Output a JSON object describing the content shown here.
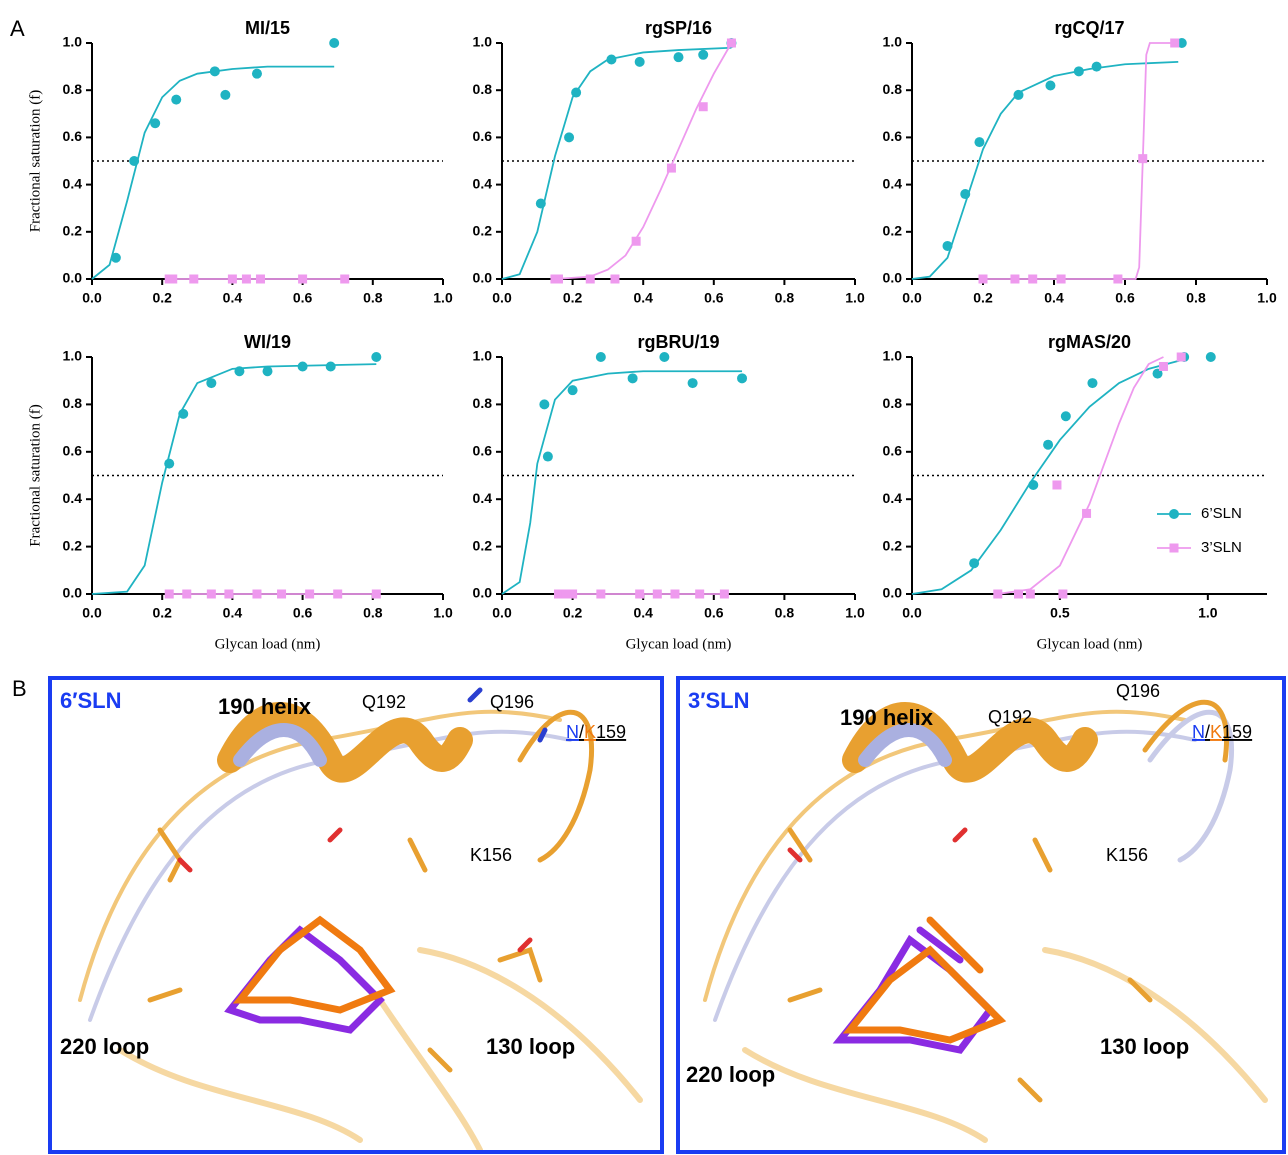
{
  "panel_a_label": "A",
  "chart_data": [
    {
      "type": "scatter",
      "title": "MI/15",
      "ylabel": "Fractional saturation (f)",
      "xlim": [
        0,
        1
      ],
      "ylim": [
        0,
        1
      ],
      "xticks": [
        {
          "value": 0,
          "label": "0.0"
        },
        {
          "value": 0.2,
          "label": "0.2"
        },
        {
          "value": 0.4,
          "label": "0.4"
        },
        {
          "value": 0.6,
          "label": "0.6"
        },
        {
          "value": 0.8,
          "label": "0.8"
        },
        {
          "value": 1,
          "label": "1.0"
        }
      ],
      "yticks": [
        {
          "value": 0,
          "label": "0.0"
        },
        {
          "value": 0.2,
          "label": "0.2"
        },
        {
          "value": 0.4,
          "label": "0.4"
        },
        {
          "value": 0.6,
          "label": "0.6"
        },
        {
          "value": 0.8,
          "label": "0.8"
        },
        {
          "value": 1,
          "label": "1.0"
        }
      ],
      "hline": 0.5,
      "series": [
        {
          "color": "#1fb3c2",
          "marker": "circle",
          "x": [
            0.068,
            0.12,
            0.18,
            0.24,
            0.35,
            0.38,
            0.47,
            0.69
          ],
          "values": [
            0.09,
            0.5,
            0.66,
            0.76,
            0.88,
            0.78,
            0.87,
            1.0
          ],
          "fit": {
            "x": [
              0,
              0.05,
              0.1,
              0.15,
              0.2,
              0.25,
              0.3,
              0.4,
              0.5,
              0.6,
              0.69
            ],
            "values": [
              0,
              0.06,
              0.33,
              0.62,
              0.77,
              0.84,
              0.87,
              0.89,
              0.9,
              0.9,
              0.9
            ]
          }
        },
        {
          "color": "#ee99ee",
          "marker": "square",
          "x": [
            0.22,
            0.23,
            0.29,
            0.4,
            0.44,
            0.48,
            0.6,
            0.72
          ],
          "values": [
            0,
            0,
            0,
            0,
            0,
            0,
            0,
            0
          ],
          "fit": {
            "x": [
              0.22,
              0.72
            ],
            "values": [
              0,
              0
            ]
          }
        }
      ]
    },
    {
      "type": "scatter",
      "title": "rgSP/16",
      "xlim": [
        0,
        1
      ],
      "ylim": [
        0,
        1
      ],
      "xticks": [
        {
          "value": 0,
          "label": "0.0"
        },
        {
          "value": 0.2,
          "label": "0.2"
        },
        {
          "value": 0.4,
          "label": "0.4"
        },
        {
          "value": 0.6,
          "label": "0.6"
        },
        {
          "value": 0.8,
          "label": "0.8"
        },
        {
          "value": 1,
          "label": "1.0"
        }
      ],
      "yticks": [
        {
          "value": 0,
          "label": "0.0"
        },
        {
          "value": 0.2,
          "label": "0.2"
        },
        {
          "value": 0.4,
          "label": "0.4"
        },
        {
          "value": 0.6,
          "label": "0.6"
        },
        {
          "value": 0.8,
          "label": "0.8"
        },
        {
          "value": 1,
          "label": "1.0"
        }
      ],
      "hline": 0.5,
      "series": [
        {
          "color": "#1fb3c2",
          "marker": "circle",
          "x": [
            0.11,
            0.19,
            0.21,
            0.31,
            0.39,
            0.5,
            0.57,
            0.65
          ],
          "values": [
            0.32,
            0.6,
            0.79,
            0.93,
            0.92,
            0.94,
            0.95,
            1.0
          ],
          "fit": {
            "x": [
              0,
              0.05,
              0.1,
              0.15,
              0.2,
              0.25,
              0.3,
              0.4,
              0.5,
              0.65
            ],
            "values": [
              0,
              0.02,
              0.2,
              0.52,
              0.77,
              0.88,
              0.93,
              0.96,
              0.97,
              0.98
            ]
          }
        },
        {
          "color": "#ee99ee",
          "marker": "square",
          "x": [
            0.15,
            0.16,
            0.25,
            0.32,
            0.38,
            0.48,
            0.57,
            0.65
          ],
          "values": [
            0,
            0,
            0,
            0,
            0.16,
            0.47,
            0.73,
            1.0
          ],
          "fit": {
            "x": [
              0.15,
              0.25,
              0.3,
              0.35,
              0.4,
              0.45,
              0.5,
              0.55,
              0.6,
              0.65
            ],
            "values": [
              0,
              0.01,
              0.04,
              0.1,
              0.22,
              0.38,
              0.55,
              0.72,
              0.87,
              1.0
            ]
          }
        }
      ]
    },
    {
      "type": "scatter",
      "title": "rgCQ/17",
      "xlim": [
        0,
        1
      ],
      "ylim": [
        0,
        1
      ],
      "xticks": [
        {
          "value": 0,
          "label": "0.0"
        },
        {
          "value": 0.2,
          "label": "0.2"
        },
        {
          "value": 0.4,
          "label": "0.4"
        },
        {
          "value": 0.6,
          "label": "0.6"
        },
        {
          "value": 0.8,
          "label": "0.8"
        },
        {
          "value": 1,
          "label": "1.0"
        }
      ],
      "yticks": [
        {
          "value": 0,
          "label": "0.0"
        },
        {
          "value": 0.2,
          "label": "0.2"
        },
        {
          "value": 0.4,
          "label": "0.4"
        },
        {
          "value": 0.6,
          "label": "0.6"
        },
        {
          "value": 0.8,
          "label": "0.8"
        },
        {
          "value": 1,
          "label": "1.0"
        }
      ],
      "hline": 0.5,
      "series": [
        {
          "color": "#1fb3c2",
          "marker": "circle",
          "x": [
            0.1,
            0.15,
            0.19,
            0.3,
            0.39,
            0.47,
            0.52,
            0.76
          ],
          "values": [
            0.14,
            0.36,
            0.58,
            0.78,
            0.82,
            0.88,
            0.9,
            1.0
          ],
          "fit": {
            "x": [
              0,
              0.05,
              0.1,
              0.15,
              0.2,
              0.25,
              0.3,
              0.4,
              0.5,
              0.6,
              0.75
            ],
            "values": [
              0,
              0.01,
              0.09,
              0.32,
              0.55,
              0.7,
              0.79,
              0.86,
              0.89,
              0.91,
              0.92
            ]
          }
        },
        {
          "color": "#ee99ee",
          "marker": "square",
          "x": [
            0.2,
            0.29,
            0.34,
            0.42,
            0.58,
            0.65,
            0.74
          ],
          "values": [
            0,
            0,
            0,
            0,
            0,
            0.51,
            1.0
          ],
          "fit": {
            "x": [
              0.2,
              0.63,
              0.64,
              0.65,
              0.66,
              0.67,
              0.75
            ],
            "values": [
              0,
              0,
              0.05,
              0.5,
              0.95,
              1.0,
              1.0
            ]
          }
        }
      ]
    },
    {
      "type": "scatter",
      "title": "WI/19",
      "ylabel": "Fractional saturation (f)",
      "xlabel": "Glycan load (nm)",
      "xlim": [
        0,
        1
      ],
      "ylim": [
        0,
        1
      ],
      "xticks": [
        {
          "value": 0,
          "label": "0.0"
        },
        {
          "value": 0.2,
          "label": "0.2"
        },
        {
          "value": 0.4,
          "label": "0.4"
        },
        {
          "value": 0.6,
          "label": "0.6"
        },
        {
          "value": 0.8,
          "label": "0.8"
        },
        {
          "value": 1,
          "label": "1.0"
        }
      ],
      "yticks": [
        {
          "value": 0,
          "label": "0.0"
        },
        {
          "value": 0.2,
          "label": "0.2"
        },
        {
          "value": 0.4,
          "label": "0.4"
        },
        {
          "value": 0.6,
          "label": "0.6"
        },
        {
          "value": 0.8,
          "label": "0.8"
        },
        {
          "value": 1,
          "label": "1.0"
        }
      ],
      "hline": 0.5,
      "series": [
        {
          "color": "#1fb3c2",
          "marker": "circle",
          "x": [
            0.22,
            0.26,
            0.34,
            0.42,
            0.5,
            0.6,
            0.68,
            0.81
          ],
          "values": [
            0.55,
            0.76,
            0.89,
            0.94,
            0.94,
            0.96,
            0.96,
            1.0
          ],
          "fit": {
            "x": [
              0,
              0.1,
              0.15,
              0.2,
              0.25,
              0.3,
              0.4,
              0.5,
              0.81
            ],
            "values": [
              0,
              0.01,
              0.12,
              0.47,
              0.76,
              0.89,
              0.95,
              0.96,
              0.97
            ]
          }
        },
        {
          "color": "#ee99ee",
          "marker": "square",
          "x": [
            0.22,
            0.27,
            0.34,
            0.39,
            0.47,
            0.54,
            0.62,
            0.7,
            0.81
          ],
          "values": [
            0,
            0,
            0,
            0,
            0,
            0,
            0,
            0,
            0
          ],
          "fit": {
            "x": [
              0.22,
              0.81
            ],
            "values": [
              0,
              0
            ]
          }
        }
      ]
    },
    {
      "type": "scatter",
      "title": "rgBRU/19",
      "xlabel": "Glycan load (nm)",
      "xlim": [
        0,
        1
      ],
      "ylim": [
        0,
        1
      ],
      "xticks": [
        {
          "value": 0,
          "label": "0.0"
        },
        {
          "value": 0.2,
          "label": "0.2"
        },
        {
          "value": 0.4,
          "label": "0.4"
        },
        {
          "value": 0.6,
          "label": "0.6"
        },
        {
          "value": 0.8,
          "label": "0.8"
        },
        {
          "value": 1,
          "label": "1.0"
        }
      ],
      "yticks": [
        {
          "value": 0,
          "label": "0.0"
        },
        {
          "value": 0.2,
          "label": "0.2"
        },
        {
          "value": 0.4,
          "label": "0.4"
        },
        {
          "value": 0.6,
          "label": "0.6"
        },
        {
          "value": 0.8,
          "label": "0.8"
        },
        {
          "value": 1,
          "label": "1.0"
        }
      ],
      "hline": 0.5,
      "series": [
        {
          "color": "#1fb3c2",
          "marker": "circle",
          "x": [
            0.12,
            0.13,
            0.2,
            0.28,
            0.37,
            0.46,
            0.54,
            0.68
          ],
          "values": [
            0.8,
            0.58,
            0.86,
            1.0,
            0.91,
            1.0,
            0.89,
            0.91
          ],
          "fit": {
            "x": [
              0,
              0.05,
              0.08,
              0.1,
              0.15,
              0.2,
              0.3,
              0.4,
              0.68
            ],
            "values": [
              0,
              0.05,
              0.3,
              0.55,
              0.82,
              0.9,
              0.93,
              0.94,
              0.94
            ]
          }
        },
        {
          "color": "#ee99ee",
          "marker": "square",
          "x": [
            0.16,
            0.18,
            0.2,
            0.28,
            0.39,
            0.44,
            0.49,
            0.56,
            0.63
          ],
          "values": [
            0,
            0,
            0,
            0,
            0,
            0,
            0,
            0,
            0
          ],
          "fit": {
            "x": [
              0.16,
              0.63
            ],
            "values": [
              0,
              0
            ]
          }
        }
      ]
    },
    {
      "type": "scatter",
      "title": "rgMAS/20",
      "xlabel": "Glycan load (nm)",
      "xlim": [
        0,
        1.2
      ],
      "ylim": [
        0,
        1
      ],
      "legend": "lower right",
      "xticks": [
        {
          "value": 0,
          "label": "0.0"
        },
        {
          "value": 0.5,
          "label": "0.5"
        },
        {
          "value": 1,
          "label": "1.0"
        }
      ],
      "yticks": [
        {
          "value": 0,
          "label": "0.0"
        },
        {
          "value": 0.2,
          "label": "0.2"
        },
        {
          "value": 0.4,
          "label": "0.4"
        },
        {
          "value": 0.6,
          "label": "0.6"
        },
        {
          "value": 0.8,
          "label": "0.8"
        },
        {
          "value": 1,
          "label": "1.0"
        }
      ],
      "hline": 0.5,
      "series": [
        {
          "name": "6’SLN",
          "color": "#1fb3c2",
          "marker": "circle",
          "x": [
            0.21,
            0.41,
            0.46,
            0.52,
            0.61,
            0.83,
            0.92,
            1.01
          ],
          "values": [
            0.13,
            0.46,
            0.63,
            0.75,
            0.89,
            0.93,
            1.0,
            1.0
          ],
          "fit": {
            "x": [
              0,
              0.1,
              0.2,
              0.3,
              0.4,
              0.5,
              0.6,
              0.7,
              0.8,
              0.92
            ],
            "values": [
              0,
              0.02,
              0.1,
              0.27,
              0.47,
              0.65,
              0.79,
              0.89,
              0.95,
              0.99
            ]
          }
        },
        {
          "name": "3’SLN",
          "color": "#ee99ee",
          "marker": "square",
          "x": [
            0.29,
            0.36,
            0.4,
            0.49,
            0.51,
            0.59,
            0.85,
            0.91
          ],
          "values": [
            0,
            0,
            0,
            0.46,
            0,
            0.34,
            0.96,
            1.0
          ],
          "fit": {
            "x": [
              0.29,
              0.4,
              0.5,
              0.6,
              0.7,
              0.75,
              0.8,
              0.85
            ],
            "values": [
              0,
              0.02,
              0.12,
              0.38,
              0.72,
              0.87,
              0.97,
              1.0
            ]
          }
        }
      ]
    }
  ],
  "panel_b": {
    "label": "B",
    "views": [
      {
        "title": "6′SLN",
        "helix": "190 helix",
        "q192": "Q192",
        "q196": "Q196",
        "site": [
          "N",
          "/",
          "K",
          "159"
        ],
        "k156": "K156",
        "loop220": "220 loop",
        "loop130": "130 loop"
      },
      {
        "title": "3′SLN",
        "helix": "190 helix",
        "q192": "Q192",
        "q196": "Q196",
        "site": [
          "N",
          "/",
          "K",
          "159"
        ],
        "k156": "K156",
        "loop220": "220 loop",
        "loop130": "130 loop"
      }
    ]
  }
}
